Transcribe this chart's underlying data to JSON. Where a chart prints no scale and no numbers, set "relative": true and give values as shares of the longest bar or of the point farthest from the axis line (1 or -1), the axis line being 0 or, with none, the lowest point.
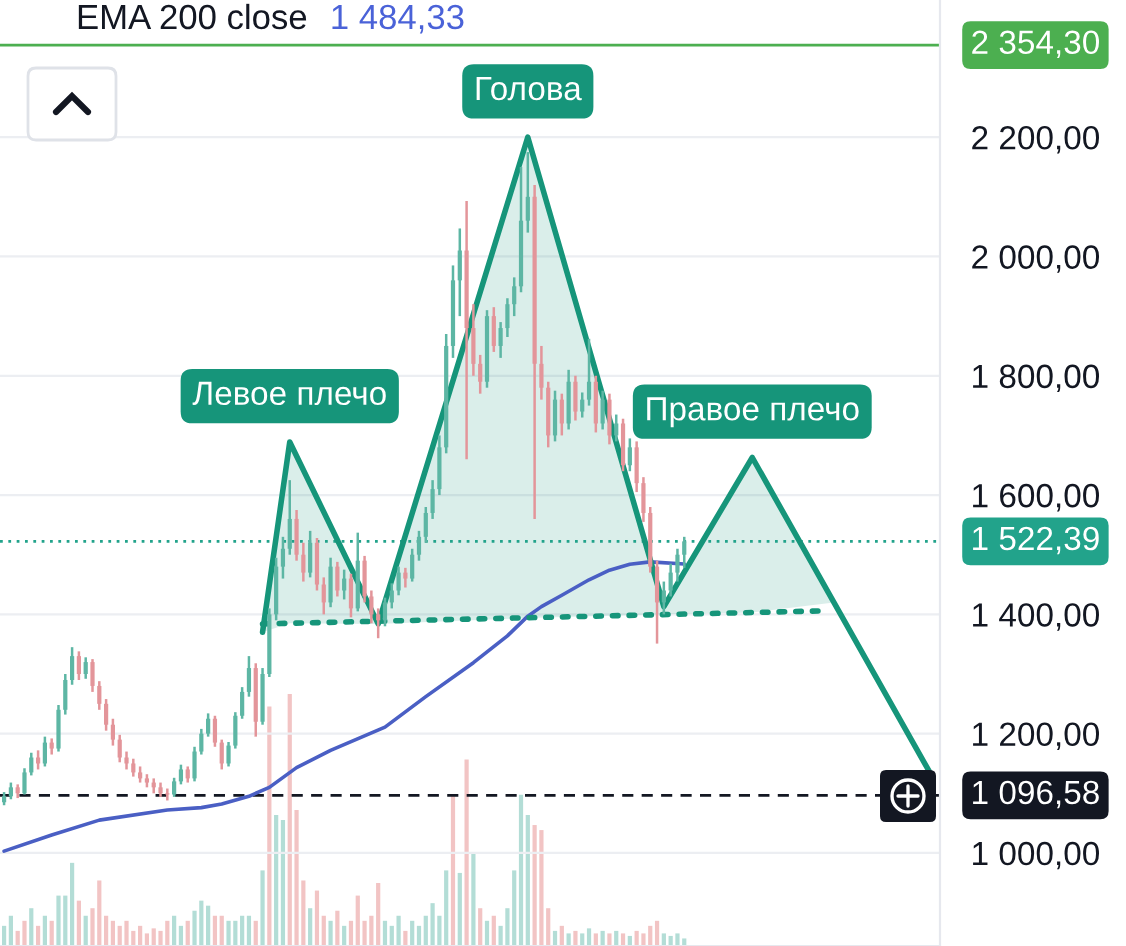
{
  "chart_data": [
    {
      "type": "candlestick",
      "categories": [
        null,
        null,
        null,
        null,
        null,
        null,
        null,
        null,
        null,
        null,
        null,
        null,
        null,
        null,
        null,
        null,
        null,
        null,
        null,
        null,
        null,
        null,
        null,
        null,
        null,
        null,
        null,
        null,
        null,
        null,
        null,
        null,
        null,
        null,
        null,
        null,
        null,
        null,
        null,
        null,
        null,
        null,
        null,
        null,
        null,
        null,
        null,
        null,
        null,
        null,
        null,
        null,
        null,
        null,
        null,
        null,
        null,
        null,
        null,
        null,
        null,
        null,
        null,
        null,
        null,
        null,
        null,
        null,
        null,
        null,
        null,
        null,
        null,
        null,
        null,
        null,
        null,
        null,
        null,
        null,
        null,
        null,
        null,
        null,
        null,
        null,
        null,
        null,
        null,
        null,
        null,
        null,
        null,
        null,
        null,
        null,
        null,
        null,
        null,
        null,
        null,
        null,
        null,
        null,
        null,
        null,
        null,
        null,
        null,
        null,
        null,
        null,
        null,
        null,
        null,
        null,
        null,
        null,
        null,
        null,
        null,
        null,
        null,
        null,
        null,
        null,
        null,
        null,
        null,
        null,
        null,
        null,
        null,
        null,
        null,
        null,
        null
      ],
      "ohlc": [
        [
          1085,
          1102,
          1080,
          1095
        ],
        [
          1095,
          1118,
          1090,
          1110
        ],
        [
          1110,
          1115,
          1092,
          1100
        ],
        [
          1100,
          1142,
          1098,
          1135
        ],
        [
          1135,
          1168,
          1130,
          1160
        ],
        [
          1160,
          1172,
          1140,
          1150
        ],
        [
          1150,
          1195,
          1145,
          1185
        ],
        [
          1185,
          1192,
          1165,
          1175
        ],
        [
          1175,
          1248,
          1170,
          1240
        ],
        [
          1240,
          1300,
          1232,
          1290
        ],
        [
          1290,
          1345,
          1282,
          1330
        ],
        [
          1330,
          1338,
          1290,
          1300
        ],
        [
          1300,
          1328,
          1292,
          1320
        ],
        [
          1320,
          1325,
          1270,
          1280
        ],
        [
          1280,
          1288,
          1240,
          1250
        ],
        [
          1250,
          1258,
          1205,
          1215
        ],
        [
          1215,
          1225,
          1180,
          1190
        ],
        [
          1190,
          1198,
          1152,
          1160
        ],
        [
          1160,
          1170,
          1140,
          1150
        ],
        [
          1150,
          1158,
          1128,
          1135
        ],
        [
          1135,
          1145,
          1118,
          1125
        ],
        [
          1125,
          1132,
          1110,
          1118
        ],
        [
          1118,
          1125,
          1100,
          1110
        ],
        [
          1110,
          1118,
          1094,
          1100
        ],
        [
          1100,
          1108,
          1088,
          1098
        ],
        [
          1098,
          1126,
          1094,
          1120
        ],
        [
          1120,
          1148,
          1115,
          1140
        ],
        [
          1140,
          1145,
          1118,
          1125
        ],
        [
          1125,
          1178,
          1120,
          1170
        ],
        [
          1170,
          1208,
          1165,
          1200
        ],
        [
          1200,
          1234,
          1195,
          1225
        ],
        [
          1225,
          1230,
          1178,
          1185
        ],
        [
          1185,
          1190,
          1140,
          1150
        ],
        [
          1150,
          1186,
          1145,
          1180
        ],
        [
          1180,
          1236,
          1175,
          1230
        ],
        [
          1230,
          1278,
          1225,
          1270
        ],
        [
          1270,
          1330,
          1262,
          1310
        ],
        [
          1310,
          1318,
          1195,
          1220
        ],
        [
          1220,
          1310,
          1215,
          1300
        ],
        [
          1300,
          1410,
          1295,
          1400
        ],
        [
          1400,
          1495,
          1390,
          1480
        ],
        [
          1480,
          1530,
          1460,
          1510
        ],
        [
          1510,
          1625,
          1500,
          1560
        ],
        [
          1560,
          1575,
          1490,
          1500
        ],
        [
          1500,
          1520,
          1455,
          1470
        ],
        [
          1470,
          1540,
          1462,
          1520
        ],
        [
          1520,
          1528,
          1440,
          1450
        ],
        [
          1450,
          1462,
          1400,
          1420
        ],
        [
          1420,
          1495,
          1412,
          1480
        ],
        [
          1480,
          1488,
          1430,
          1440
        ],
        [
          1440,
          1475,
          1425,
          1460
        ],
        [
          1460,
          1468,
          1395,
          1410
        ],
        [
          1410,
          1537,
          1405,
          1490
        ],
        [
          1490,
          1498,
          1420,
          1430
        ],
        [
          1430,
          1440,
          1385,
          1400
        ],
        [
          1400,
          1410,
          1360,
          1390
        ],
        [
          1390,
          1428,
          1380,
          1420
        ],
        [
          1420,
          1452,
          1410,
          1440
        ],
        [
          1440,
          1480,
          1432,
          1470
        ],
        [
          1470,
          1478,
          1445,
          1460
        ],
        [
          1460,
          1510,
          1455,
          1500
        ],
        [
          1500,
          1540,
          1490,
          1530
        ],
        [
          1530,
          1580,
          1520,
          1570
        ],
        [
          1570,
          1625,
          1560,
          1610
        ],
        [
          1610,
          1700,
          1600,
          1680
        ],
        [
          1680,
          1870,
          1670,
          1850
        ],
        [
          1850,
          1985,
          1830,
          1960
        ],
        [
          1960,
          2047,
          1900,
          2010
        ],
        [
          2010,
          2093,
          1660,
          1880
        ],
        [
          1880,
          1920,
          1800,
          1820
        ],
        [
          1820,
          1835,
          1770,
          1790
        ],
        [
          1790,
          1910,
          1780,
          1900
        ],
        [
          1900,
          1915,
          1840,
          1850
        ],
        [
          1850,
          1890,
          1830,
          1880
        ],
        [
          1880,
          1930,
          1865,
          1920
        ],
        [
          1920,
          1965,
          1900,
          1950
        ],
        [
          1950,
          2150,
          1940,
          2060
        ],
        [
          2060,
          2175,
          2040,
          2100
        ],
        [
          2100,
          2120,
          1560,
          1820
        ],
        [
          1820,
          1850,
          1760,
          1780
        ],
        [
          1780,
          1790,
          1680,
          1700
        ],
        [
          1700,
          1775,
          1690,
          1760
        ],
        [
          1760,
          1770,
          1700,
          1720
        ],
        [
          1720,
          1810,
          1710,
          1790
        ],
        [
          1790,
          1800,
          1725,
          1740
        ],
        [
          1740,
          1772,
          1730,
          1760
        ],
        [
          1760,
          1862,
          1750,
          1790
        ],
        [
          1790,
          1800,
          1705,
          1720
        ],
        [
          1720,
          1775,
          1710,
          1760
        ],
        [
          1760,
          1770,
          1685,
          1700
        ],
        [
          1700,
          1735,
          1690,
          1720
        ],
        [
          1720,
          1728,
          1640,
          1650
        ],
        [
          1650,
          1695,
          1640,
          1680
        ],
        [
          1680,
          1690,
          1605,
          1620
        ],
        [
          1620,
          1630,
          1555,
          1570
        ],
        [
          1570,
          1580,
          1470,
          1480
        ],
        [
          1480,
          1490,
          1351,
          1420
        ],
        [
          1420,
          1455,
          1400,
          1440
        ],
        [
          1440,
          1485,
          1430,
          1470
        ],
        [
          1470,
          1510,
          1455,
          1500
        ],
        [
          1500,
          1530,
          1478,
          1522.39
        ],
        null,
        null,
        null,
        null,
        null,
        null,
        null,
        null,
        null,
        null,
        null,
        null,
        null,
        null,
        null,
        null,
        null,
        null,
        null,
        null,
        null,
        null,
        null,
        null,
        null,
        null,
        null,
        null,
        null,
        null,
        null,
        null,
        null,
        null,
        null,
        null
      ],
      "colors": [
        "#5db6a4",
        "#5db6a4",
        "#e3959a",
        "#5db6a4",
        "#5db6a4",
        "#e3959a",
        "#5db6a4",
        "#e3959a",
        "#5db6a4",
        "#5db6a4",
        "#5db6a4",
        "#e3959a",
        "#5db6a4",
        "#e3959a",
        "#e3959a",
        "#e3959a",
        "#e3959a",
        "#e3959a",
        "#e3959a",
        "#e3959a",
        "#e3959a",
        "#e3959a",
        "#e3959a",
        "#e3959a",
        "#e3959a",
        "#5db6a4",
        "#5db6a4",
        "#e3959a",
        "#5db6a4",
        "#5db6a4",
        "#5db6a4",
        "#e3959a",
        "#e3959a",
        "#5db6a4",
        "#5db6a4",
        "#5db6a4",
        "#5db6a4",
        "#e3959a",
        "#5db6a4",
        "#5db6a4",
        "#5db6a4",
        "#5db6a4",
        "#5db6a4",
        "#e3959a",
        "#e3959a",
        "#5db6a4",
        "#e3959a",
        "#e3959a",
        "#5db6a4",
        "#e3959a",
        "#5db6a4",
        "#e3959a",
        "#5db6a4",
        "#e3959a",
        "#e3959a",
        "#e3959a",
        "#5db6a4",
        "#5db6a4",
        "#5db6a4",
        "#e3959a",
        "#5db6a4",
        "#5db6a4",
        "#5db6a4",
        "#5db6a4",
        "#5db6a4",
        "#5db6a4",
        "#5db6a4",
        "#5db6a4",
        "#e3959a",
        "#e3959a",
        "#e3959a",
        "#5db6a4",
        "#e3959a",
        "#5db6a4",
        "#5db6a4",
        "#5db6a4",
        "#5db6a4",
        "#5db6a4",
        "#e3959a",
        "#e3959a",
        "#e3959a",
        "#5db6a4",
        "#e3959a",
        "#5db6a4",
        "#e3959a",
        "#5db6a4",
        "#5db6a4",
        "#e3959a",
        "#5db6a4",
        "#e3959a",
        "#5db6a4",
        "#e3959a",
        "#5db6a4",
        "#e3959a",
        "#e3959a",
        "#e3959a",
        "#e3959a",
        "#5db6a4",
        "#5db6a4",
        "#5db6a4",
        "#5db6a4",
        null,
        null,
        null,
        null,
        null,
        null,
        null,
        null,
        null,
        null,
        null,
        null,
        null,
        null,
        null,
        null,
        null,
        null,
        null,
        null,
        null,
        null,
        null,
        null,
        null,
        null,
        null,
        null,
        null,
        null,
        null,
        null,
        null,
        null,
        null,
        null
      ],
      "series": [
        {
          "type": "line",
          "color": "#4a5fc4",
          "values": [
            1003,
            null,
            null,
            null,
            null,
            null,
            null,
            1030,
            null,
            null,
            null,
            null,
            null,
            null,
            1055,
            null,
            null,
            null,
            null,
            null,
            null,
            null,
            null,
            null,
            1072,
            null,
            null,
            null,
            null,
            1076,
            null,
            null,
            1082,
            null,
            null,
            null,
            1095,
            null,
            null,
            1110,
            null,
            null,
            null,
            1143,
            null,
            null,
            null,
            null,
            1172,
            null,
            null,
            null,
            null,
            null,
            null,
            null,
            1211,
            null,
            null,
            null,
            null,
            null,
            1262,
            null,
            null,
            null,
            null,
            null,
            null,
            1319,
            null,
            null,
            null,
            null,
            1364,
            null,
            null,
            1397,
            null,
            1413,
            null,
            null,
            1432,
            null,
            null,
            null,
            1458,
            null,
            null,
            1474,
            null,
            null,
            1484,
            null,
            null,
            1488,
            null,
            null,
            null,
            null,
            1484.33,
            null,
            null,
            null,
            null,
            null,
            null,
            null,
            null,
            null,
            null,
            null,
            null,
            null,
            null,
            null,
            null,
            null,
            null,
            null,
            null,
            null,
            null,
            null,
            null,
            null,
            null,
            null,
            null,
            null,
            null,
            null,
            null,
            null,
            null,
            null,
            null
          ]
        },
        {
          "type": "line",
          "color": "#16957a",
          "values": [
            null,
            null,
            null,
            null,
            null,
            null,
            null,
            null,
            null,
            null,
            null,
            null,
            null,
            null,
            null,
            null,
            null,
            null,
            null,
            null,
            null,
            null,
            null,
            null,
            null,
            null,
            null,
            null,
            null,
            null,
            null,
            null,
            null,
            null,
            null,
            null,
            null,
            null,
            1370,
            null,
            null,
            null,
            1689,
            null,
            null,
            null,
            null,
            null,
            null,
            null,
            null,
            null,
            null,
            null,
            null,
            1384,
            null,
            null,
            null,
            null,
            null,
            null,
            null,
            null,
            null,
            null,
            null,
            null,
            null,
            null,
            null,
            null,
            null,
            null,
            null,
            null,
            null,
            2200,
            null,
            null,
            null,
            null,
            null,
            null,
            null,
            null,
            null,
            null,
            null,
            null,
            null,
            null,
            null,
            null,
            null,
            null,
            null,
            1413,
            null,
            null,
            null,
            null,
            null,
            null,
            null,
            null,
            null,
            null,
            null,
            null,
            1663,
            null,
            null,
            null,
            null,
            null,
            null,
            null,
            null,
            null,
            null,
            null,
            1420,
            null,
            null,
            null,
            null,
            null,
            null,
            null,
            null,
            null,
            null,
            null,
            null,
            null,
            1137
          ],
          "lower": [
            null,
            null,
            null,
            null,
            null,
            null,
            null,
            null,
            null,
            null,
            null,
            null,
            null,
            null,
            null,
            null,
            null,
            null,
            null,
            null,
            null,
            null,
            null,
            null,
            null,
            null,
            null,
            null,
            null,
            null,
            null,
            null,
            null,
            null,
            null,
            null,
            null,
            null,
            1370,
            null,
            null,
            null,
            1385,
            null,
            null,
            null,
            null,
            null,
            null,
            null,
            null,
            null,
            null,
            null,
            null,
            1384,
            null,
            null,
            null,
            null,
            null,
            null,
            null,
            null,
            null,
            null,
            null,
            null,
            null,
            null,
            null,
            null,
            null,
            null,
            null,
            null,
            null,
            1394,
            null,
            null,
            null,
            null,
            null,
            null,
            null,
            null,
            null,
            null,
            null,
            null,
            null,
            null,
            null,
            null,
            null,
            null,
            null,
            1400,
            null,
            null,
            null,
            null,
            null,
            null,
            null,
            null,
            null,
            null,
            null,
            null,
            1403,
            null,
            null,
            null,
            null,
            null,
            null,
            null,
            null,
            null,
            null,
            null,
            1420,
            null,
            null,
            null,
            null,
            null,
            null,
            null,
            null,
            null,
            null,
            null,
            null,
            null,
            null
          ],
          "upper": [
            null,
            null,
            null,
            null,
            null,
            null,
            null,
            null,
            null,
            null,
            null,
            null,
            null,
            null,
            null,
            null,
            null,
            null,
            null,
            null,
            null,
            null,
            null,
            null,
            null,
            null,
            null,
            null,
            null,
            null,
            null,
            null,
            null,
            null,
            null,
            null,
            null,
            null,
            1370,
            null,
            null,
            null,
            1689,
            null,
            null,
            null,
            null,
            null,
            null,
            null,
            null,
            null,
            null,
            null,
            null,
            1384,
            null,
            null,
            null,
            null,
            null,
            null,
            null,
            null,
            null,
            null,
            null,
            null,
            null,
            null,
            null,
            null,
            null,
            null,
            null,
            null,
            null,
            2200,
            null,
            null,
            null,
            null,
            null,
            null,
            null,
            null,
            null,
            null,
            null,
            null,
            null,
            null,
            null,
            null,
            null,
            null,
            null,
            1413,
            null,
            null,
            null,
            null,
            null,
            null,
            null,
            null,
            null,
            null,
            null,
            null,
            1663,
            null,
            null,
            null,
            null,
            null,
            null,
            null,
            null,
            null,
            null,
            null,
            1420,
            null,
            null,
            null,
            null,
            null,
            null,
            null,
            null,
            null,
            null,
            null,
            null,
            null,
            null
          ]
        },
        {
          "type": "line",
          "color": "#16957a",
          "line_style": "dotted",
          "values": [
            null,
            null,
            null,
            null,
            null,
            null,
            null,
            null,
            null,
            null,
            null,
            null,
            null,
            null,
            null,
            null,
            null,
            null,
            null,
            null,
            null,
            null,
            null,
            null,
            null,
            null,
            null,
            null,
            null,
            null,
            null,
            null,
            null,
            null,
            null,
            null,
            null,
            null,
            1384,
            null,
            null,
            null,
            null,
            null,
            null,
            null,
            null,
            null,
            null,
            null,
            null,
            null,
            null,
            null,
            null,
            null,
            null,
            null,
            null,
            null,
            null,
            null,
            null,
            null,
            null,
            null,
            null,
            null,
            null,
            null,
            null,
            null,
            null,
            null,
            null,
            null,
            null,
            null,
            null,
            null,
            null,
            null,
            null,
            null,
            null,
            null,
            null,
            null,
            null,
            null,
            null,
            null,
            null,
            null,
            null,
            null,
            null,
            null,
            null,
            null,
            null,
            null,
            null,
            null,
            null,
            null,
            null,
            null,
            null,
            null,
            null,
            null,
            null,
            null,
            null,
            null,
            null,
            null,
            null,
            null,
            null,
            1406,
            null,
            null,
            null,
            null,
            null,
            null,
            null,
            null,
            null,
            null,
            null,
            null,
            null,
            null,
            null
          ]
        }
      ],
      "ylim": [
        844,
        2430
      ],
      "yticks": [
        {
          "value": 1000,
          "label": "1 000,00"
        },
        {
          "value": 1200,
          "label": "1 200,00"
        },
        {
          "value": 1400,
          "label": "1 400,00"
        },
        {
          "value": 1600,
          "label": "1 600,00"
        },
        {
          "value": 1800,
          "label": "1 800,00"
        },
        {
          "value": 2000,
          "label": "2 000,00"
        },
        {
          "value": 2200,
          "label": "2 200,00"
        }
      ],
      "tick_labels": "y",
      "grid": "y",
      "ref_lines": [
        {
          "axis": "y",
          "value": 2354.3,
          "label": "2 354,30",
          "color": "#4caf50",
          "line_style": "solid"
        },
        {
          "axis": "y",
          "value": 1522.39,
          "label": "1 522,39",
          "color": "#22a38b",
          "line_style": "dotted"
        },
        {
          "axis": "y",
          "value": 1096.58,
          "label": "1 096,58",
          "color": "#131722",
          "line_style": "dashed"
        }
      ],
      "annotations": [
        "EMA 200 close",
        "1 484,33",
        {
          "text": "Левое плечо",
          "y": 1689
        },
        {
          "text": "Голова",
          "y": 2200
        },
        {
          "text": "Правое плечо",
          "y": 1663
        }
      ]
    },
    {
      "type": "bar",
      "relative": true,
      "tick_labels": false,
      "categories": [
        null,
        null,
        null,
        null,
        null,
        null,
        null,
        null,
        null,
        null,
        null,
        null,
        null,
        null,
        null,
        null,
        null,
        null,
        null,
        null,
        null,
        null,
        null,
        null,
        null,
        null,
        null,
        null,
        null,
        null,
        null,
        null,
        null,
        null,
        null,
        null,
        null,
        null,
        null,
        null,
        null,
        null,
        null,
        null,
        null,
        null,
        null,
        null,
        null,
        null,
        null,
        null,
        null,
        null,
        null,
        null,
        null,
        null,
        null,
        null,
        null,
        null,
        null,
        null,
        null,
        null,
        null,
        null,
        null,
        null,
        null,
        null,
        null,
        null,
        null,
        null,
        null,
        null,
        null,
        null,
        null,
        null,
        null,
        null,
        null,
        null,
        null,
        null,
        null,
        null,
        null,
        null,
        null,
        null,
        null,
        null,
        null,
        null,
        null,
        null,
        null
      ],
      "values": [
        0.08,
        0.12,
        0.06,
        0.1,
        0.15,
        0.08,
        0.12,
        0.1,
        0.2,
        0.2,
        0.33,
        0.18,
        0.12,
        0.15,
        0.26,
        0.12,
        0.1,
        0.08,
        0.1,
        0.06,
        0.08,
        0.05,
        0.07,
        0.06,
        0.1,
        0.12,
        0.08,
        0.1,
        0.14,
        0.18,
        0.16,
        0.12,
        0.12,
        0.1,
        0.1,
        0.12,
        0.12,
        0.1,
        0.3,
        0.95,
        0.52,
        0.5,
        1.0,
        0.54,
        0.26,
        0.15,
        0.22,
        0.12,
        0.1,
        0.14,
        0.08,
        0.1,
        0.2,
        0.1,
        0.12,
        0.25,
        0.1,
        0.08,
        0.12,
        0.06,
        0.1,
        0.08,
        0.12,
        0.17,
        0.12,
        0.3,
        0.6,
        0.29,
        0.74,
        0.37,
        0.15,
        0.1,
        0.12,
        0.08,
        0.15,
        0.3,
        0.6,
        0.52,
        0.48,
        0.46,
        0.15,
        0.06,
        0.08,
        0.05,
        0.06,
        0.05,
        0.07,
        0.05,
        0.06,
        0.05,
        0.06,
        0.05,
        0.04,
        0.06,
        0.05,
        0.08,
        0.1,
        0.05,
        0.04,
        0.05,
        0.03
      ],
      "colors": [
        "#b3ddd6",
        "#b3ddd6",
        "#f2c4c4",
        "#f2c4c4",
        "#b3ddd6",
        "#f2c4c4",
        "#b3ddd6",
        "#f2c4c4",
        "#b3ddd6",
        "#b3ddd6",
        "#b3ddd6",
        "#f2c4c4",
        "#b3ddd6",
        "#f2c4c4",
        "#f2c4c4",
        "#f2c4c4",
        "#f2c4c4",
        "#f2c4c4",
        "#f2c4c4",
        "#f2c4c4",
        "#f2c4c4",
        "#f2c4c4",
        "#f2c4c4",
        "#f2c4c4",
        "#f2c4c4",
        "#b3ddd6",
        "#b3ddd6",
        "#f2c4c4",
        "#b3ddd6",
        "#b3ddd6",
        "#b3ddd6",
        "#f2c4c4",
        "#f2c4c4",
        "#b3ddd6",
        "#b3ddd6",
        "#b3ddd6",
        "#b3ddd6",
        "#f2c4c4",
        "#b3ddd6",
        "#f2c4c4",
        "#b3ddd6",
        "#b3ddd6",
        "#f2c4c4",
        "#f2c4c4",
        "#f2c4c4",
        "#b3ddd6",
        "#f2c4c4",
        "#f2c4c4",
        "#b3ddd6",
        "#f2c4c4",
        "#b3ddd6",
        "#f2c4c4",
        "#f2c4c4",
        "#f2c4c4",
        "#f2c4c4",
        "#f2c4c4",
        "#b3ddd6",
        "#b3ddd6",
        "#b3ddd6",
        "#f2c4c4",
        "#b3ddd6",
        "#b3ddd6",
        "#b3ddd6",
        "#b3ddd6",
        "#b3ddd6",
        "#b3ddd6",
        "#f2c4c4",
        "#b3ddd6",
        "#f2c4c4",
        "#b3ddd6",
        "#f2c4c4",
        "#b3ddd6",
        "#f2c4c4",
        "#b3ddd6",
        "#b3ddd6",
        "#b3ddd6",
        "#b3ddd6",
        "#b3ddd6",
        "#f2c4c4",
        "#f2c4c4",
        "#f2c4c4",
        "#b3ddd6",
        "#f2c4c4",
        "#b3ddd6",
        "#f2c4c4",
        "#b3ddd6",
        "#b3ddd6",
        "#f2c4c4",
        "#b3ddd6",
        "#f2c4c4",
        "#b3ddd6",
        "#f2c4c4",
        "#b3ddd6",
        "#f2c4c4",
        "#f2c4c4",
        "#f2c4c4",
        "#f2c4c4",
        "#b3ddd6",
        "#b3ddd6",
        "#b3ddd6",
        "#b3ddd6"
      ]
    }
  ]
}
